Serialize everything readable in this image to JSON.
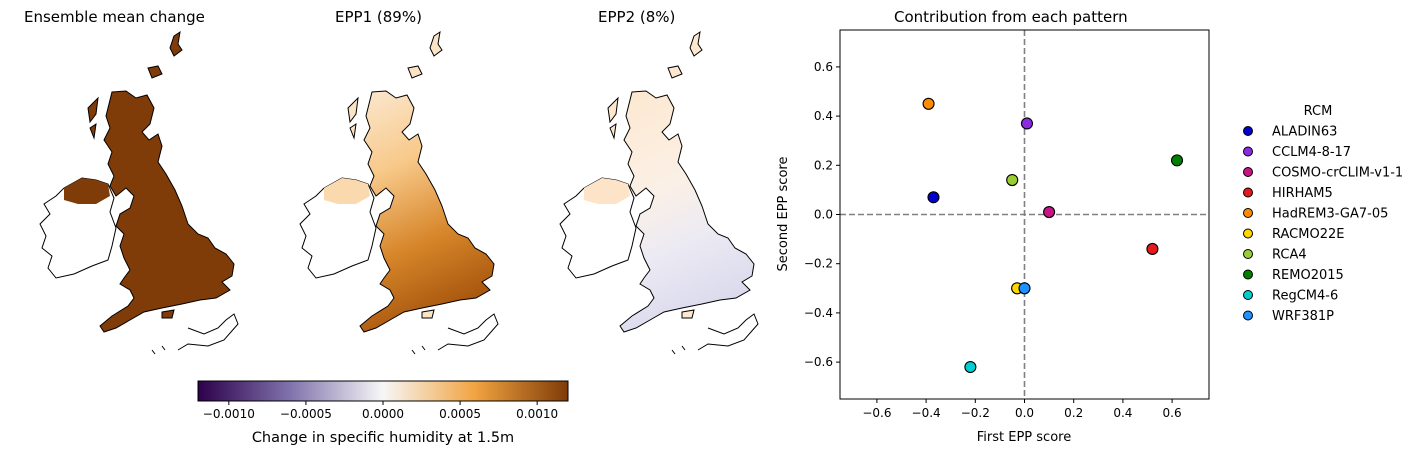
{
  "maps": [
    {
      "title": "Ensemble mean change",
      "fill": "#7f3b08",
      "pattern": "uniform"
    },
    {
      "title": "EPP1 (89%)",
      "fill": "#d7862a",
      "pattern": "gradient"
    },
    {
      "title": "EPP2 (8%)",
      "fill": "#f4e6dc",
      "pattern": "diverging"
    }
  ],
  "colorbar": {
    "label": "Change in specific humidity at 1.5m",
    "min": -0.0012,
    "max": 0.0012,
    "ticks": [
      -0.001,
      -0.0005,
      0.0,
      0.0005,
      0.001
    ],
    "tick_labels": [
      "−0.0010",
      "−0.0005",
      "0.0000",
      "0.0005",
      "0.0010"
    ],
    "colors": [
      "#2d004b",
      "#8073ac",
      "#f7f7f7",
      "#f1a340",
      "#7f3b08"
    ]
  },
  "chart_data": {
    "type": "scatter",
    "title": "Contribution from each pattern",
    "xlabel": "First EPP score",
    "ylabel": "Second EPP score",
    "xlim": [
      -0.75,
      0.75
    ],
    "ylim": [
      -0.75,
      0.75
    ],
    "xticks": [
      -0.6,
      -0.4,
      -0.2,
      0.0,
      0.2,
      0.4,
      0.6
    ],
    "xtick_labels": [
      "−0.6",
      "−0.4",
      "−0.2",
      "0.0",
      "0.2",
      "0.4",
      "0.6"
    ],
    "yticks": [
      -0.6,
      -0.4,
      -0.2,
      0.0,
      0.2,
      0.4,
      0.6
    ],
    "ytick_labels": [
      "−0.6",
      "−0.4",
      "−0.2",
      "0.0",
      "0.2",
      "0.4",
      "0.6"
    ],
    "reference_lines": {
      "x": 0,
      "y": 0,
      "style": "dashed",
      "color": "#808080"
    },
    "legend_title": "RCM",
    "legend_position": "right",
    "series": [
      {
        "name": "ALADIN63",
        "color": "#0000cd",
        "x": -0.37,
        "y": 0.07
      },
      {
        "name": "CCLM4-8-17",
        "color": "#8a2be2",
        "x": 0.01,
        "y": 0.37
      },
      {
        "name": "COSMO-crCLIM-v1-1",
        "color": "#c71585",
        "x": 0.1,
        "y": 0.01
      },
      {
        "name": "HIRHAM5",
        "color": "#e41a1c",
        "x": 0.52,
        "y": -0.14
      },
      {
        "name": "HadREM3-GA7-05",
        "color": "#ff8c00",
        "x": -0.39,
        "y": 0.45
      },
      {
        "name": "RACMO22E",
        "color": "#ffd700",
        "x": -0.03,
        "y": -0.3
      },
      {
        "name": "RCA4",
        "color": "#9acd32",
        "x": -0.05,
        "y": 0.14
      },
      {
        "name": "REMO2015",
        "color": "#008000",
        "x": 0.62,
        "y": 0.22
      },
      {
        "name": "RegCM4-6",
        "color": "#00ced1",
        "x": -0.22,
        "y": -0.62
      },
      {
        "name": "WRF381P",
        "color": "#1e90ff",
        "x": 0.0,
        "y": -0.3
      }
    ]
  }
}
